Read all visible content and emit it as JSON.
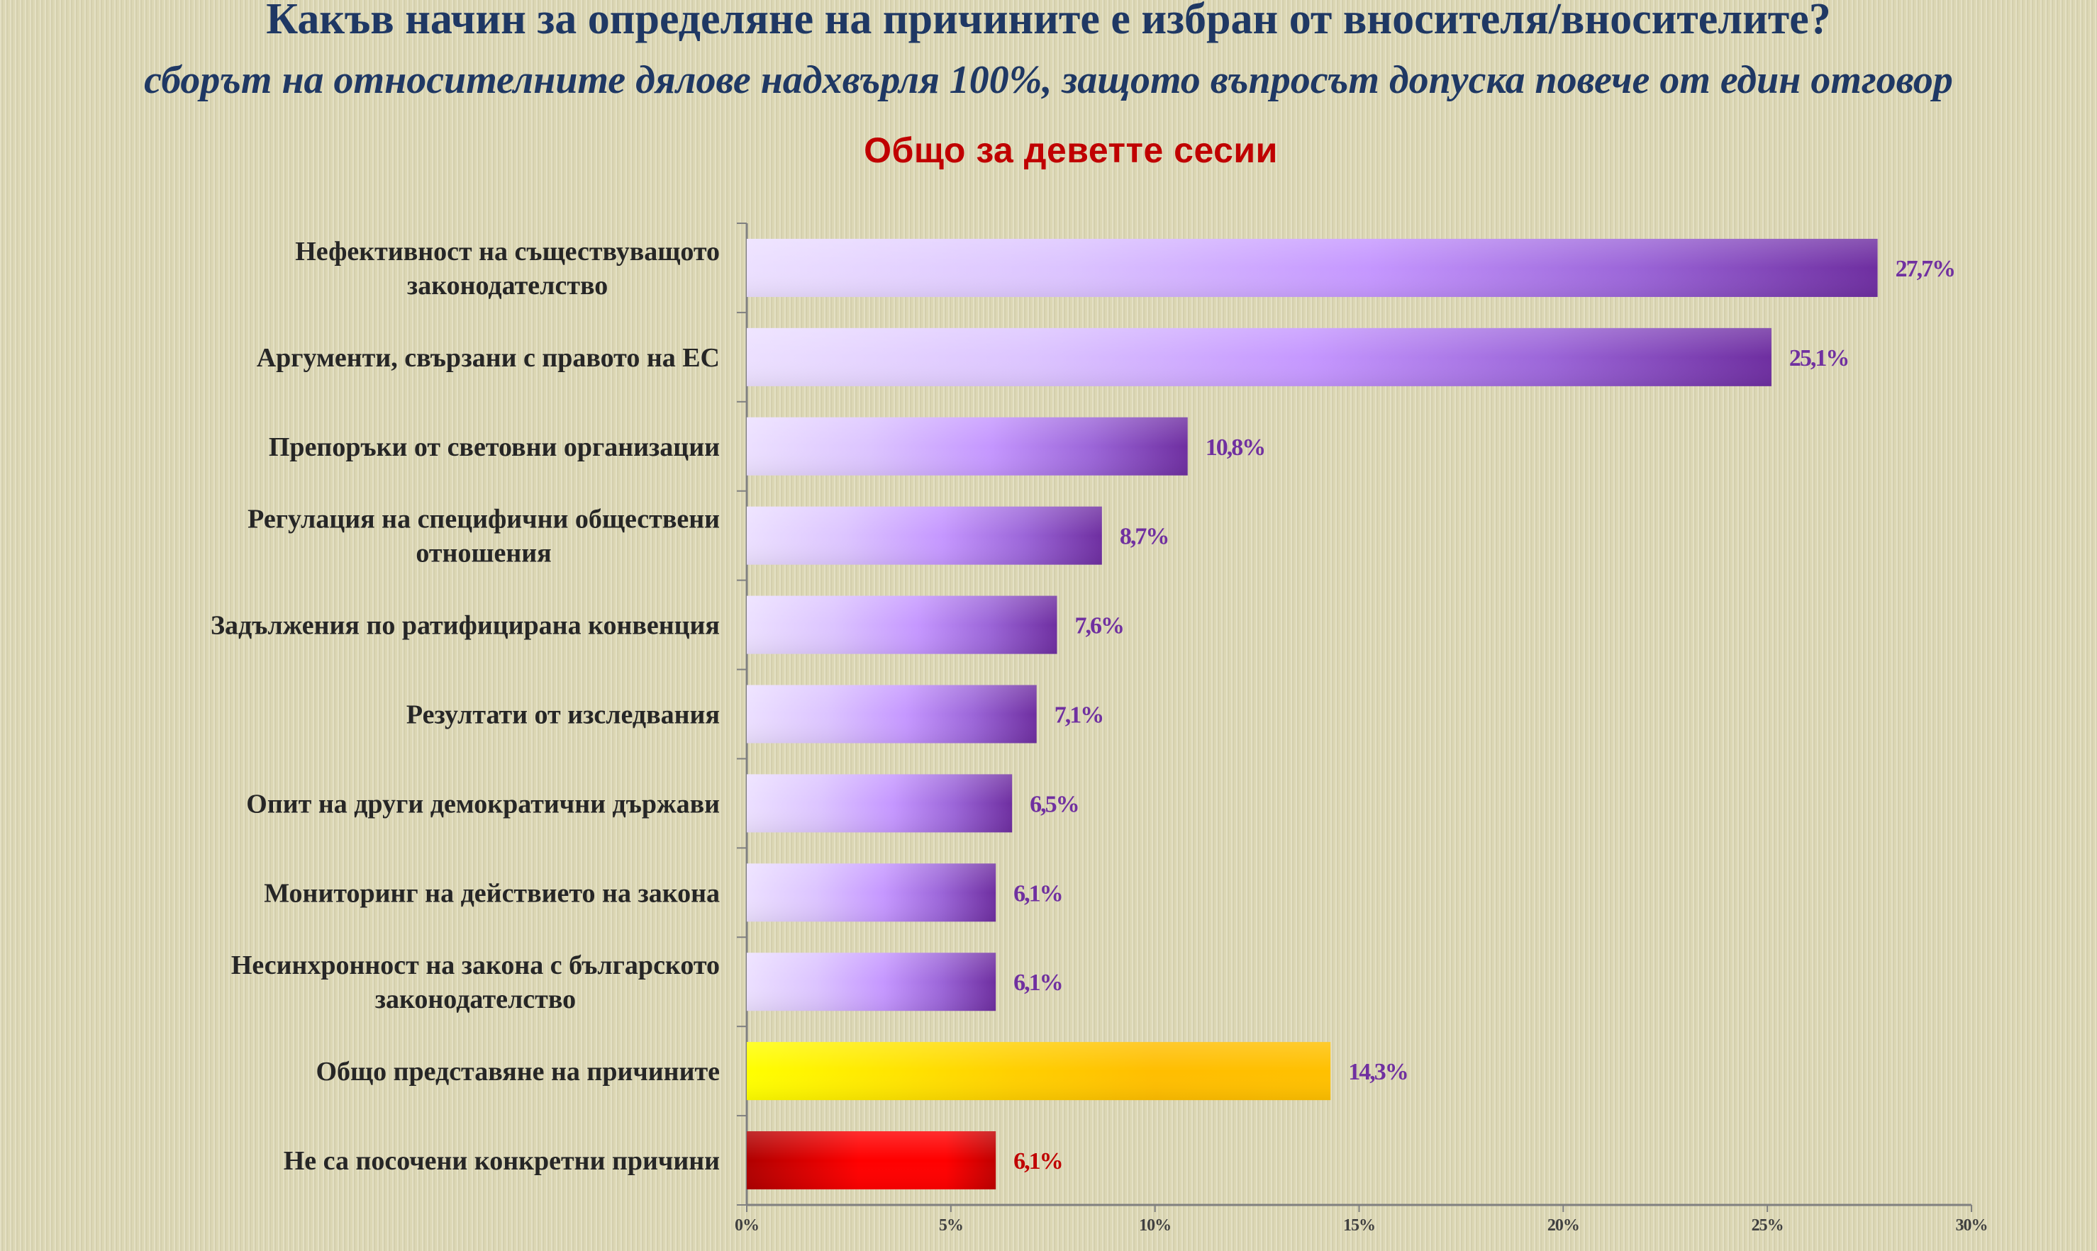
{
  "header": {
    "title": "Какъв начин за определяне на причините е избран от вносителя/вносителите?",
    "subtitle": "сборът на относителните дялове надхвърля 100%, защото въпросът допуска повече от един отговор"
  },
  "chart_data": {
    "type": "bar",
    "orientation": "horizontal",
    "title": "Общо за деветте сесии",
    "xlabel": "",
    "ylabel": "",
    "xlim": [
      0,
      30
    ],
    "grid": false,
    "x_ticks": [
      "0%",
      "5%",
      "10%",
      "15%",
      "20%",
      "25%",
      "30%"
    ],
    "categories": [
      [
        "Нефективност на съществуващото",
        "законодателство"
      ],
      [
        "Аргументи, свързани с правото на ЕС"
      ],
      [
        "Препоръки от световни организации"
      ],
      [
        "Регулация на специфични обществени",
        "отношения"
      ],
      [
        "Задължения по ратифицирана конвенция"
      ],
      [
        "Резултати от изследвания"
      ],
      [
        "Опит на други демократични държави"
      ],
      [
        "Мониторинг на действието на закона"
      ],
      [
        "Несинхронност на закона с българското",
        "законодателство"
      ],
      [
        "Общо представяне на причините"
      ],
      [
        "Не са посочени конкретни причини"
      ]
    ],
    "values": [
      27.7,
      25.1,
      10.8,
      8.7,
      7.6,
      7.1,
      6.5,
      6.1,
      6.1,
      14.3,
      6.1
    ],
    "value_labels": [
      "27,7%",
      "25,1%",
      "10,8%",
      "8,7%",
      "7,6%",
      "7,1%",
      "6,5%",
      "6,1%",
      "6,1%",
      "14,3%",
      "6,1%"
    ],
    "bar_styles": [
      "purple",
      "purple",
      "purple",
      "purple",
      "purple",
      "purple",
      "purple",
      "purple",
      "purple",
      "yellow",
      "red"
    ],
    "colors": {
      "purple_light": "#e8d9ff",
      "purple_mid": "#c597ff",
      "purple_dark": "#7030a0",
      "yellow_light": "#ffff00",
      "yellow_dark": "#ffc000",
      "red_dark": "#c00000",
      "red_bright": "#ff0000",
      "label_purple": "#7030a0",
      "label_red": "#c00000",
      "axis": "#808080"
    }
  }
}
